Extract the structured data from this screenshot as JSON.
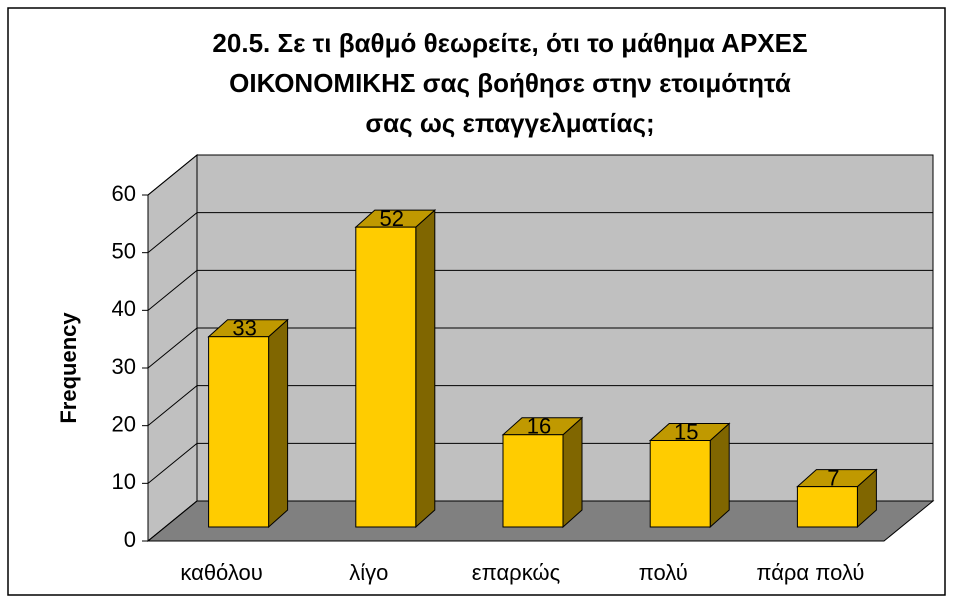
{
  "chart_data": {
    "type": "bar3d",
    "title": [
      "20.5. Σε τι βαθμό θεωρείτε, ότι το μάθημα ΑΡΧΕΣ",
      "ΟΙΚΟΝΟΜΙΚΗΣ σας βοήθησε στην ετοιμότητά",
      "σας ως επαγγελματίας;"
    ],
    "ylabel": "Frequency",
    "categories": [
      "καθόλου",
      "λίγο",
      "επαρκώς",
      "πολύ",
      "πάρα πολύ"
    ],
    "values": [
      33,
      52,
      16,
      15,
      7
    ],
    "color": "#ffcc00",
    "ylim": [
      0,
      60
    ],
    "yticks": [
      0,
      10,
      20,
      30,
      40,
      50,
      60
    ],
    "grid": true
  }
}
